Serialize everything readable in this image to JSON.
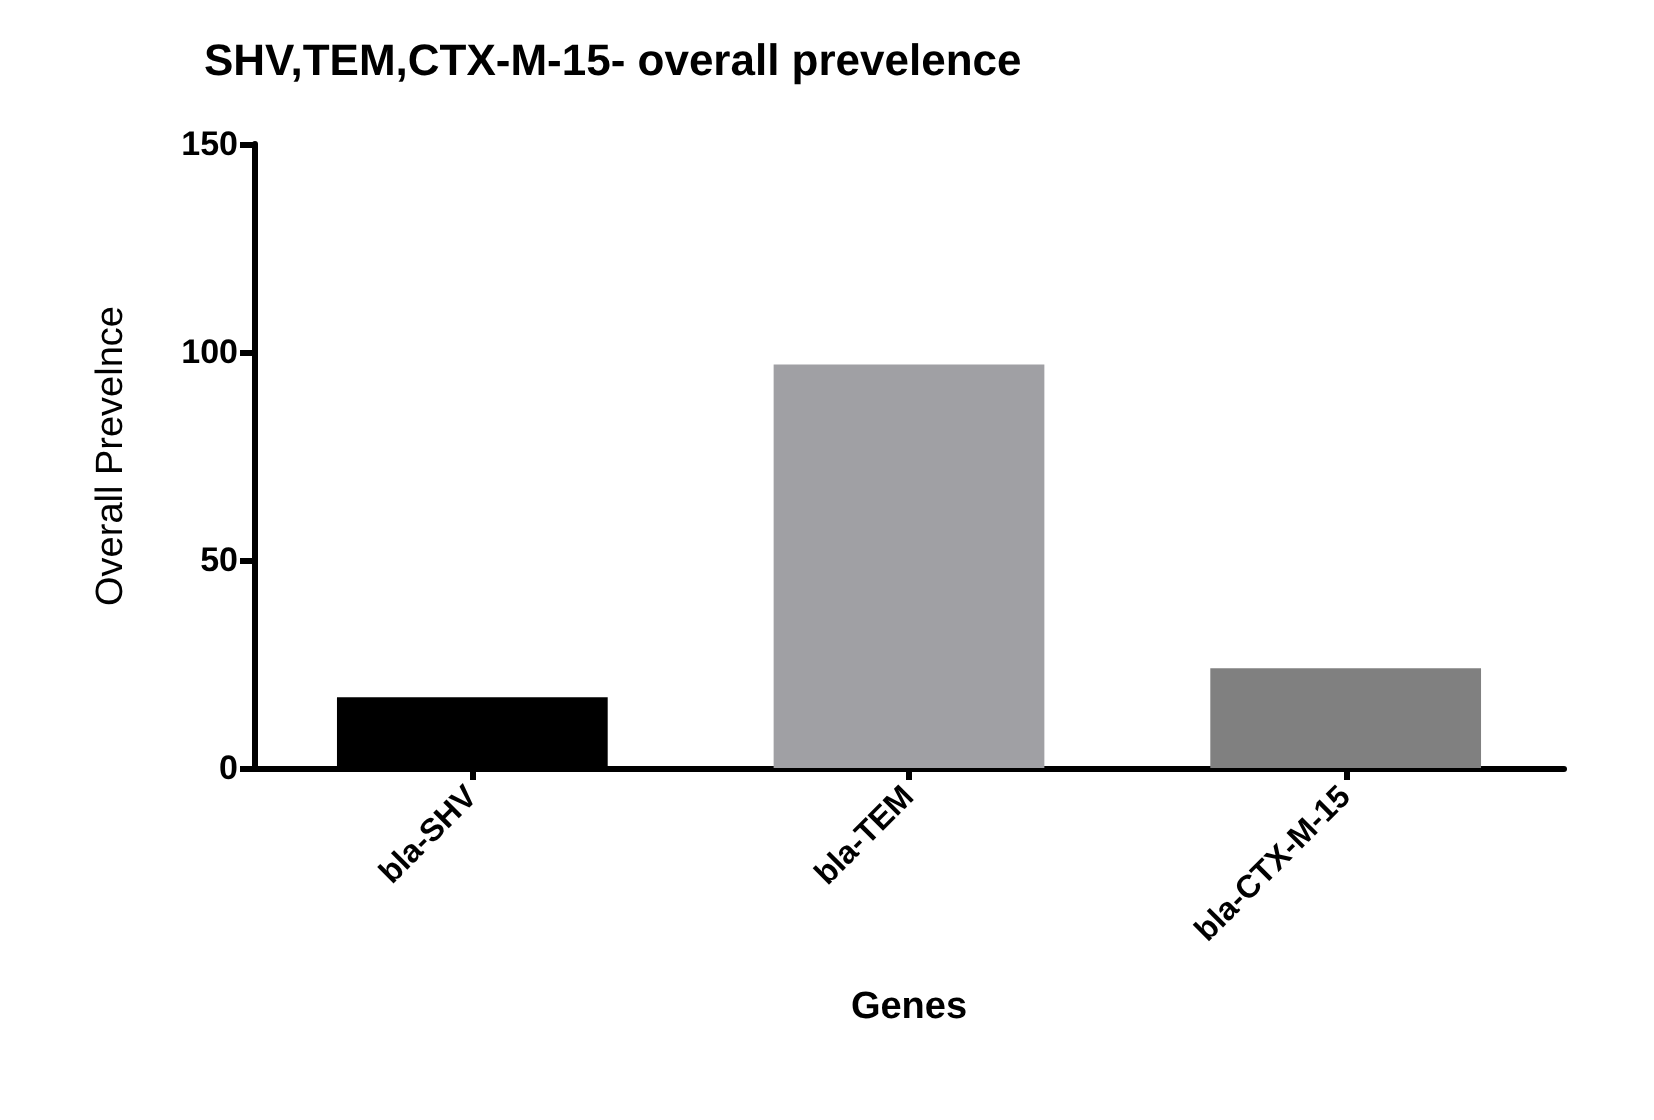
{
  "chart_data": {
    "type": "bar",
    "title": "SHV,TEM,CTX-M-15- overall prevelence",
    "xlabel": "Genes",
    "ylabel": "Overall Prevelnce",
    "categories": [
      "bla-SHV",
      "bla-TEM",
      "bla-CTX-M-15"
    ],
    "values": [
      17,
      97,
      24
    ],
    "colors": [
      "#000000",
      "#a0a0a4",
      "#808080"
    ],
    "ylim": [
      0,
      150
    ],
    "yticks": [
      0,
      50,
      100,
      150
    ],
    "grid": false
  }
}
